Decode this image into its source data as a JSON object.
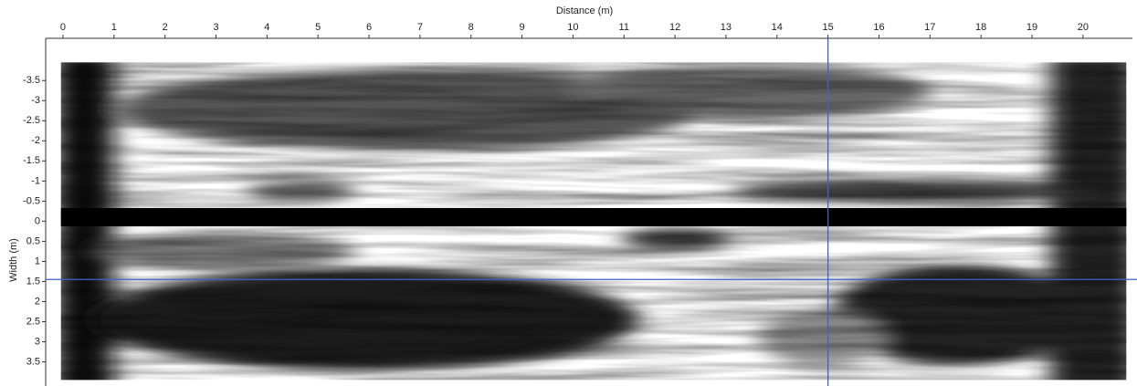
{
  "chart_data": {
    "type": "image",
    "title": "Distance (m)",
    "y_label": "Width (m)",
    "xlim": [
      -0.34,
      20.97
    ],
    "xticks": [
      0,
      1,
      2,
      3,
      4,
      5,
      6,
      7,
      8,
      9,
      10,
      11,
      12,
      13,
      14,
      15,
      16,
      17,
      18,
      19,
      20
    ],
    "ylim": [
      -4.55,
      4.1
    ],
    "yticks": [
      -3.5,
      -3,
      -2.5,
      -2,
      -1.5,
      -1,
      -0.5,
      0,
      0.5,
      1,
      1.5,
      2,
      2.5,
      3,
      3.5
    ],
    "extent": {
      "x": [
        -0.04,
        20.85
      ],
      "y": [
        -3.95,
        3.95
      ]
    },
    "crosshair": {
      "x": 15,
      "y": 1.45,
      "color": "#3a64c8"
    }
  }
}
